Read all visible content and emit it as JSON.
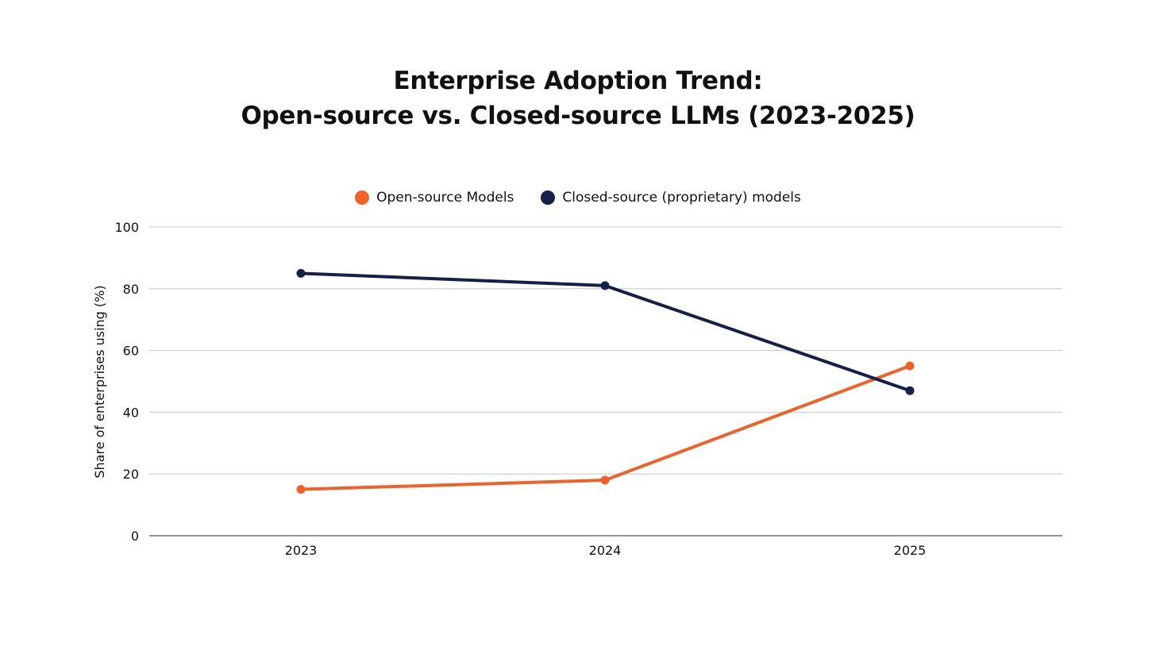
{
  "chart_data": {
    "type": "line",
    "title_lines": [
      "Enterprise Adoption Trend:",
      "Open-source vs. Closed-source LLMs (2023-2025)"
    ],
    "xlabel": "",
    "ylabel": "Share of enterprises using (%)",
    "categories": [
      "2023",
      "2024",
      "2025"
    ],
    "ylim": [
      0,
      100
    ],
    "yticks": [
      0,
      20,
      40,
      60,
      80,
      100
    ],
    "grid": true,
    "legend_position": "top-center",
    "series": [
      {
        "name": "Open-source Models",
        "color": "#EE6128",
        "values": [
          15,
          18,
          55
        ]
      },
      {
        "name": "Closed-source (proprietary) models",
        "color": "#15204A",
        "values": [
          85,
          81,
          47
        ]
      }
    ]
  }
}
